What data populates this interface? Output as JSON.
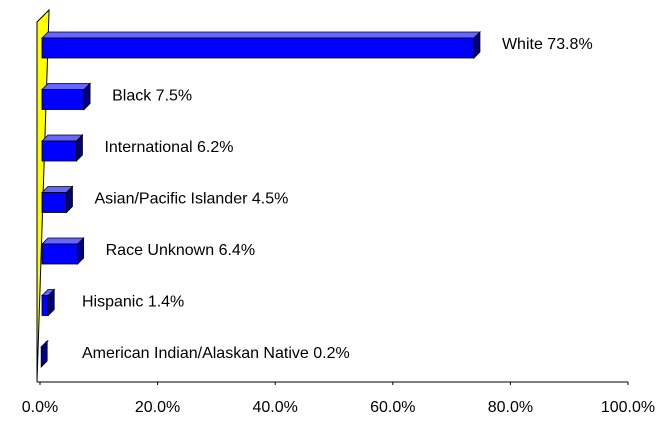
{
  "chart_data": {
    "type": "bar",
    "orientation": "horizontal",
    "categories": [
      "White",
      "Black",
      "International",
      "Asian/Pacific Islander",
      "Race Unknown",
      "Hispanic",
      "American Indian/Alaskan Native"
    ],
    "values": [
      73.8,
      7.5,
      6.2,
      4.5,
      6.4,
      1.4,
      0.2
    ],
    "value_labels": [
      "73.8%",
      "7.5%",
      "6.2%",
      "4.5%",
      "6.4%",
      "1.4%",
      "0.2%"
    ],
    "color": "#0000ff",
    "wall_color": "#ffff00",
    "xlim": [
      0,
      100
    ],
    "xticks": [
      {
        "value": 0,
        "label": "0.0%"
      },
      {
        "value": 20,
        "label": "20.0%"
      },
      {
        "value": 40,
        "label": "40.0%"
      },
      {
        "value": 60,
        "label": "60.0%"
      },
      {
        "value": 80,
        "label": "80.0%"
      },
      {
        "value": 100,
        "label": "100.0%"
      }
    ]
  }
}
